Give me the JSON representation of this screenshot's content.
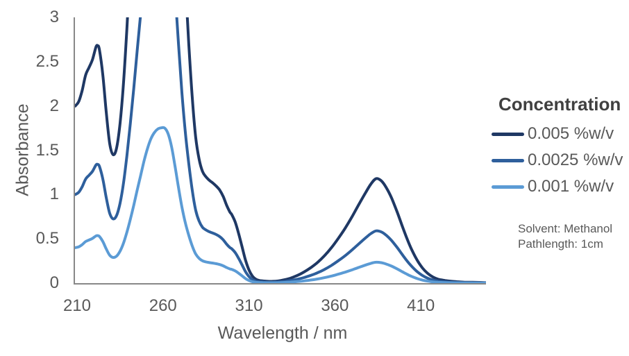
{
  "chart_data": {
    "type": "line",
    "title": "",
    "xlabel": "Wavelength / nm",
    "ylabel": "Absorbance",
    "x_ticks": [
      210,
      260,
      310,
      360,
      410
    ],
    "y_ticks": [
      0,
      0.5,
      1,
      1.5,
      2,
      2.5,
      3
    ],
    "xlim": [
      208.8,
      447.9
    ],
    "ylim": [
      0,
      3
    ],
    "grid": false,
    "legend_title": "Concentration",
    "legend_position": "right",
    "axis_color": "#878787",
    "tick_label_color": "#595959",
    "series": [
      {
        "name": "0.005 %w/v",
        "color": "#1F3864",
        "column": 1
      },
      {
        "name": "0.0025 %w/v",
        "color": "#2E5F9C",
        "column": 2
      },
      {
        "name": "0.001 %w/v",
        "color": "#5B9BD5",
        "column": 3
      }
    ],
    "columns": [
      "wavelength_nm",
      "0.005 %w/v",
      "0.0025 %w/v",
      "0.001 %w/v"
    ],
    "points": [
      [
        209,
        2.0,
        1.0,
        0.4
      ],
      [
        211,
        2.05,
        1.025,
        0.41
      ],
      [
        213,
        2.175,
        1.088,
        0.435
      ],
      [
        215,
        2.35,
        1.175,
        0.47
      ],
      [
        217,
        2.435,
        1.218,
        0.487
      ],
      [
        219,
        2.525,
        1.263,
        0.505
      ],
      [
        221,
        2.665,
        1.333,
        0.533
      ],
      [
        222,
        2.68,
        1.34,
        0.536
      ],
      [
        223,
        2.635,
        1.318,
        0.527
      ],
      [
        225,
        2.35,
        1.175,
        0.47
      ],
      [
        227,
        1.925,
        0.963,
        0.385
      ],
      [
        229,
        1.575,
        0.788,
        0.315
      ],
      [
        231,
        1.45,
        0.725,
        0.29
      ],
      [
        233,
        1.525,
        0.763,
        0.305
      ],
      [
        235,
        1.8,
        0.9,
        0.36
      ],
      [
        237,
        2.25,
        1.125,
        0.45
      ],
      [
        239,
        2.875,
        1.438,
        0.575
      ],
      [
        241,
        3.6,
        1.8,
        0.72
      ],
      [
        243,
        4.4,
        2.2,
        0.88
      ],
      [
        245,
        5.25,
        2.625,
        1.05
      ],
      [
        247,
        6.075,
        3.038,
        1.215
      ],
      [
        249,
        6.9,
        3.45,
        1.38
      ],
      [
        251,
        7.6,
        3.8,
        1.52
      ],
      [
        253,
        8.15,
        4.075,
        1.63
      ],
      [
        255,
        8.5,
        4.25,
        1.7
      ],
      [
        257,
        8.7,
        4.35,
        1.74
      ],
      [
        259,
        8.765,
        4.383,
        1.753
      ],
      [
        261,
        8.75,
        4.375,
        1.75
      ],
      [
        263,
        8.425,
        4.213,
        1.685
      ],
      [
        265,
        7.7,
        3.85,
        1.54
      ],
      [
        267,
        6.6,
        3.3,
        1.32
      ],
      [
        269,
        5.4,
        2.7,
        1.08
      ],
      [
        271,
        4.3,
        2.15,
        0.86
      ],
      [
        273,
        3.4,
        1.7,
        0.68
      ],
      [
        275,
        2.7,
        1.35,
        0.54
      ],
      [
        277,
        2.1,
        1.05,
        0.42
      ],
      [
        279,
        1.65,
        0.825,
        0.33
      ],
      [
        281,
        1.4,
        0.7,
        0.28
      ],
      [
        283,
        1.26,
        0.63,
        0.252
      ],
      [
        285,
        1.2,
        0.6,
        0.24
      ],
      [
        287,
        1.16,
        0.58,
        0.232
      ],
      [
        289,
        1.13,
        0.565,
        0.226
      ],
      [
        291,
        1.095,
        0.548,
        0.219
      ],
      [
        293,
        1.05,
        0.525,
        0.21
      ],
      [
        295,
        0.98,
        0.49,
        0.196
      ],
      [
        297,
        0.88,
        0.44,
        0.176
      ],
      [
        299,
        0.8,
        0.4,
        0.16
      ],
      [
        300,
        0.775,
        0.388,
        0.155
      ],
      [
        302,
        0.69,
        0.345,
        0.138
      ],
      [
        304,
        0.56,
        0.28,
        0.112
      ],
      [
        306,
        0.41,
        0.205,
        0.082
      ],
      [
        308,
        0.26,
        0.13,
        0.052
      ],
      [
        310,
        0.15,
        0.075,
        0.03
      ],
      [
        312,
        0.08,
        0.04,
        0.016
      ],
      [
        314,
        0.045,
        0.023,
        0.009
      ],
      [
        316,
        0.03,
        0.015,
        0.006
      ],
      [
        318,
        0.025,
        0.013,
        0.005
      ],
      [
        321,
        0.02,
        0.01,
        0.004
      ],
      [
        324,
        0.02,
        0.01,
        0.004
      ],
      [
        327,
        0.025,
        0.013,
        0.005
      ],
      [
        330,
        0.035,
        0.018,
        0.007
      ],
      [
        334,
        0.055,
        0.028,
        0.011
      ],
      [
        338,
        0.085,
        0.043,
        0.017
      ],
      [
        342,
        0.125,
        0.063,
        0.025
      ],
      [
        346,
        0.175,
        0.088,
        0.035
      ],
      [
        350,
        0.235,
        0.118,
        0.047
      ],
      [
        354,
        0.31,
        0.155,
        0.062
      ],
      [
        358,
        0.4,
        0.2,
        0.08
      ],
      [
        362,
        0.505,
        0.253,
        0.101
      ],
      [
        366,
        0.62,
        0.31,
        0.124
      ],
      [
        370,
        0.75,
        0.375,
        0.15
      ],
      [
        374,
        0.89,
        0.445,
        0.178
      ],
      [
        378,
        1.025,
        0.513,
        0.205
      ],
      [
        381,
        1.12,
        0.56,
        0.224
      ],
      [
        384,
        1.18,
        0.59,
        0.236
      ],
      [
        387,
        1.155,
        0.578,
        0.231
      ],
      [
        390,
        1.075,
        0.538,
        0.215
      ],
      [
        393,
        0.96,
        0.48,
        0.192
      ],
      [
        396,
        0.815,
        0.408,
        0.163
      ],
      [
        399,
        0.655,
        0.328,
        0.131
      ],
      [
        402,
        0.5,
        0.25,
        0.1
      ],
      [
        405,
        0.365,
        0.183,
        0.073
      ],
      [
        408,
        0.255,
        0.128,
        0.051
      ],
      [
        411,
        0.17,
        0.085,
        0.034
      ],
      [
        414,
        0.11,
        0.055,
        0.022
      ],
      [
        417,
        0.07,
        0.035,
        0.014
      ],
      [
        420,
        0.045,
        0.023,
        0.009
      ],
      [
        424,
        0.03,
        0.015,
        0.006
      ],
      [
        428,
        0.02,
        0.01,
        0.004
      ],
      [
        432,
        0.015,
        0.008,
        0.003
      ],
      [
        436,
        0.01,
        0.005,
        0.002
      ],
      [
        440,
        0.01,
        0.005,
        0.002
      ],
      [
        444,
        0.008,
        0.004,
        0.002
      ],
      [
        448,
        0.005,
        0.003,
        0.001
      ]
    ]
  },
  "annotation": {
    "lines": [
      "Solvent: Methanol",
      "Pathlength: 1cm"
    ]
  }
}
